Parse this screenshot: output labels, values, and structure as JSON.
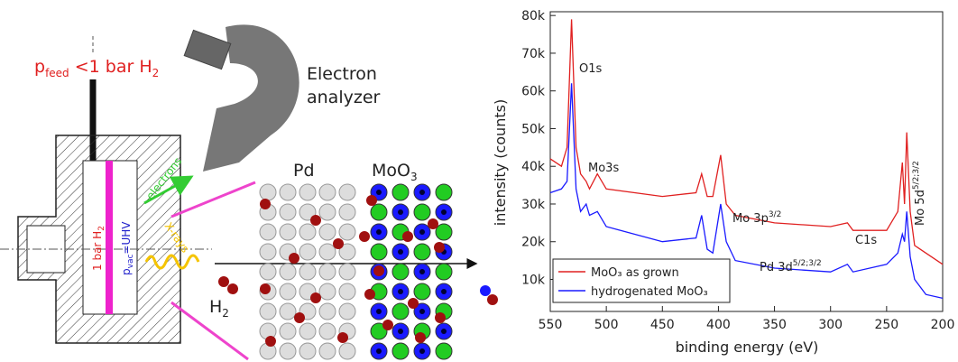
{
  "diagram": {
    "feed": [
      "p",
      "feed",
      " <1 bar H",
      "2"
    ],
    "analyzer": [
      "Electron",
      "analyzer"
    ],
    "electrons": "electrons",
    "xrays": "X-rays",
    "cell_pressure": [
      "1 bar H",
      "2"
    ],
    "vac_pressure": [
      "p",
      "vac",
      "=UHV"
    ],
    "h2": [
      "H",
      "2"
    ],
    "pd": "Pd",
    "moo3": [
      "MoO",
      "3"
    ]
  },
  "chart_data": {
    "type": "line",
    "x_label": "binding energy (eV)",
    "y_label": "intensity (counts)",
    "x": [
      550,
      540,
      535,
      531,
      527,
      523,
      518,
      515,
      508,
      500,
      450,
      420,
      415,
      410,
      405,
      398,
      393,
      385,
      350,
      300,
      285,
      280,
      250,
      240,
      236,
      234,
      232,
      229,
      225,
      215,
      200
    ],
    "series": [
      {
        "name": "MoO₃ as grown",
        "color": "#e02020",
        "values": [
          42000,
          40000,
          45000,
          79000,
          45000,
          38000,
          36000,
          34000,
          38000,
          34000,
          32000,
          33000,
          38000,
          32000,
          32000,
          43000,
          30000,
          27000,
          25000,
          24000,
          25000,
          23000,
          23000,
          28000,
          41000,
          30000,
          49000,
          28000,
          19000,
          17000,
          14000
        ]
      },
      {
        "name": "hydrogenated MoO₃",
        "color": "#1a1aff",
        "values": [
          33000,
          34000,
          36000,
          62000,
          34000,
          28000,
          30000,
          27000,
          28000,
          24000,
          20000,
          21000,
          27000,
          18000,
          17000,
          30000,
          20000,
          15000,
          13000,
          12000,
          14000,
          12000,
          14000,
          17000,
          22000,
          20000,
          28000,
          16000,
          10000,
          6000,
          5000
        ]
      }
    ],
    "xlim": [
      550,
      200
    ],
    "xticks": [
      550,
      500,
      450,
      400,
      350,
      300,
      250,
      200
    ],
    "ylim": [
      1500,
      81000
    ],
    "yticks": [
      {
        "value": 10000,
        "label": "10k"
      },
      {
        "value": 20000,
        "label": "20k"
      },
      {
        "value": 30000,
        "label": "30k"
      },
      {
        "value": 40000,
        "label": "40k"
      },
      {
        "value": 50000,
        "label": "50k"
      },
      {
        "value": 60000,
        "label": "60k"
      },
      {
        "value": 70000,
        "label": "70k"
      },
      {
        "value": 80000,
        "label": "80k"
      }
    ],
    "annotations": [
      {
        "text": "O1s"
      },
      {
        "text": "Mo3s"
      },
      {
        "text": "Mo 3p",
        "sup": "3/2"
      },
      {
        "text": "C1s"
      },
      {
        "text": "Pd 3d",
        "sup": "5/2;3/2"
      },
      {
        "text": "Mo 5d",
        "sup": "5/2;3/2"
      }
    ],
    "legend": "lower left"
  }
}
